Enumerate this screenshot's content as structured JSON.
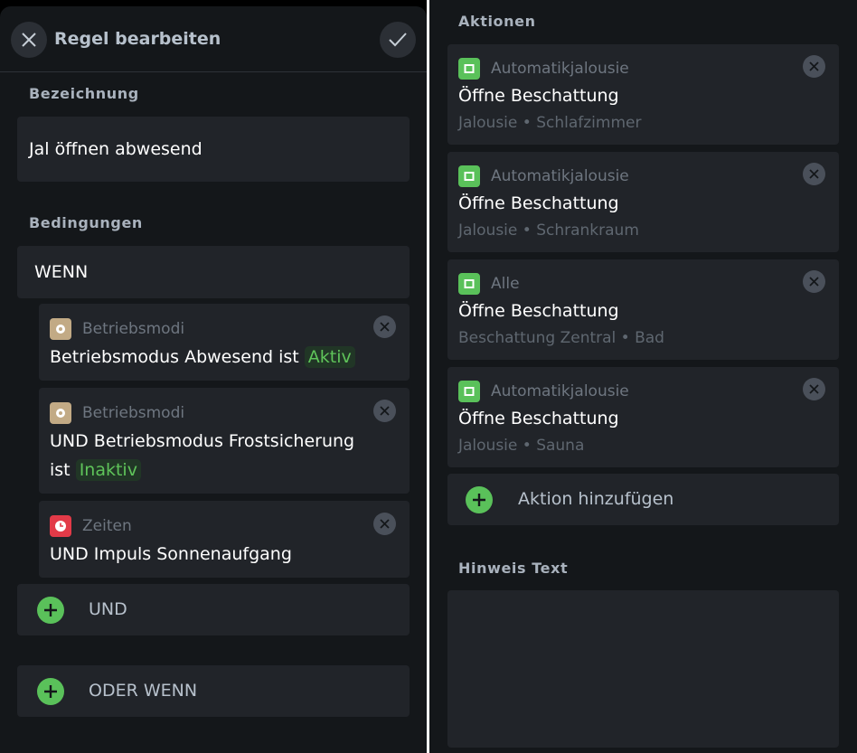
{
  "header": {
    "title": "Regel bearbeiten",
    "close_icon": "close-icon",
    "confirm_icon": "check-icon"
  },
  "name_section": {
    "label": "Bezeichnung",
    "value": "Jal öffnen abwesend"
  },
  "conditions": {
    "label": "Bedingungen",
    "group_label": "WENN",
    "items": [
      {
        "category": "Betriebsmodi",
        "icon": "gear-icon",
        "icon_color": "#c2aa85",
        "text": "Betriebsmodus Abwesend ist",
        "status": "Aktiv"
      },
      {
        "category": "Betriebsmodi",
        "icon": "gear-icon",
        "icon_color": "#c2aa85",
        "text": "UND Betriebsmodus Frostsicherung",
        "text2": "ist",
        "status": "Inaktiv"
      },
      {
        "category": "Zeiten",
        "icon": "clock-icon",
        "icon_color": "#e23a48",
        "text": "UND Impuls Sonnenaufgang"
      }
    ],
    "and_label": "UND",
    "or_label": "ODER WENN"
  },
  "actions": {
    "label": "Aktionen",
    "items": [
      {
        "category": "Automatikjalousie",
        "title": "Öffne Beschattung",
        "subtitle": "Jalousie • Schlafzimmer"
      },
      {
        "category": "Automatikjalousie",
        "title": "Öffne Beschattung",
        "subtitle": "Jalousie • Schrankraum"
      },
      {
        "category": "Alle",
        "title": "Öffne Beschattung",
        "subtitle": "Beschattung Zentral • Bad"
      },
      {
        "category": "Automatikjalousie",
        "title": "Öffne Beschattung",
        "subtitle": "Jalousie • Sauna"
      }
    ],
    "icon": "blind-icon",
    "icon_color": "#5ac15a",
    "add_label": "Aktion hinzufügen"
  },
  "hint": {
    "label": "Hinweis Text",
    "value": ""
  },
  "colors": {
    "background": "#14171a",
    "card": "#212429",
    "accent_green": "#5ac15a"
  }
}
